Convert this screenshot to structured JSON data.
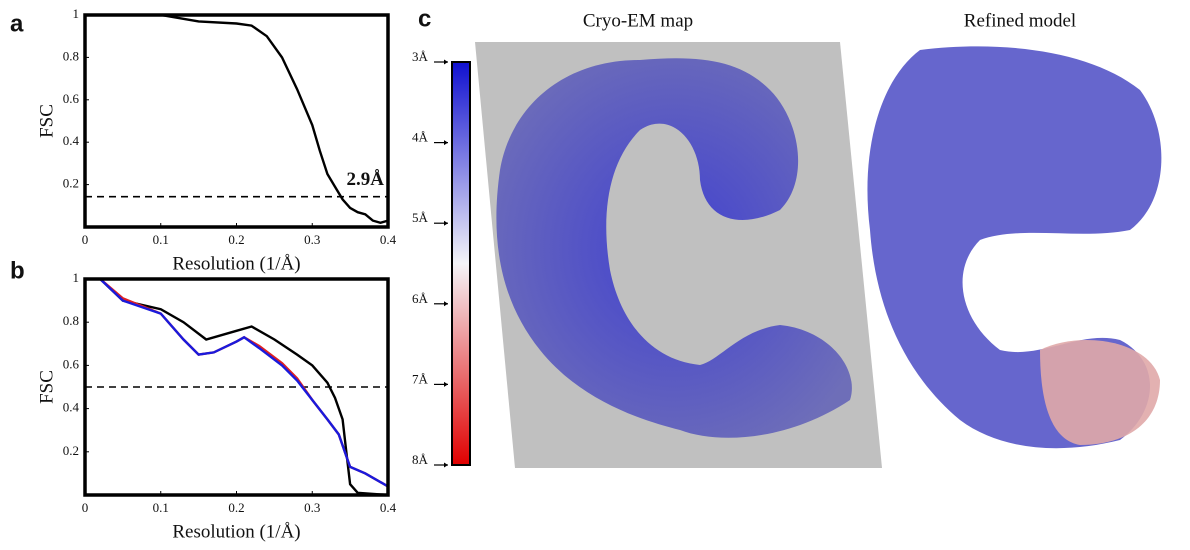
{
  "chart_data": [
    {
      "type": "line",
      "panel": "a",
      "xlabel": "Resolution (1/Å)",
      "ylabel": "FSC",
      "xlim": [
        0,
        0.4
      ],
      "ylim": [
        0,
        1
      ],
      "xticks": [
        0,
        0.1,
        0.2,
        0.3,
        0.4
      ],
      "yticks": [
        0.2,
        0.4,
        0.6,
        0.8,
        1
      ],
      "threshold": 0.143,
      "annotation": "2.9Å",
      "series": [
        {
          "color": "#000000",
          "x": [
            0.02,
            0.1,
            0.15,
            0.2,
            0.22,
            0.24,
            0.26,
            0.28,
            0.3,
            0.31,
            0.32,
            0.33,
            0.34,
            0.35,
            0.36,
            0.37,
            0.38,
            0.39,
            0.4
          ],
          "values": [
            1.0,
            1.0,
            0.97,
            0.96,
            0.95,
            0.9,
            0.8,
            0.65,
            0.48,
            0.36,
            0.25,
            0.19,
            0.13,
            0.09,
            0.07,
            0.06,
            0.03,
            0.02,
            0.03
          ]
        }
      ]
    },
    {
      "type": "line",
      "panel": "b",
      "xlabel": "Resolution (1/Å)",
      "ylabel": "FSC",
      "xlim": [
        0,
        0.4
      ],
      "ylim": [
        0,
        1
      ],
      "xticks": [
        0,
        0.1,
        0.2,
        0.3,
        0.4
      ],
      "yticks": [
        0.2,
        0.4,
        0.6,
        0.8,
        1
      ],
      "threshold": 0.5,
      "series": [
        {
          "color": "#000000",
          "x": [
            0.02,
            0.05,
            0.1,
            0.13,
            0.16,
            0.2,
            0.22,
            0.25,
            0.28,
            0.3,
            0.32,
            0.33,
            0.34,
            0.345,
            0.35,
            0.36,
            0.4
          ],
          "values": [
            1.0,
            0.9,
            0.86,
            0.8,
            0.72,
            0.76,
            0.78,
            0.72,
            0.65,
            0.6,
            0.52,
            0.45,
            0.35,
            0.2,
            0.05,
            0.01,
            0.0
          ]
        },
        {
          "color": "#e02020",
          "x": [
            0.02,
            0.05,
            0.1,
            0.13,
            0.15,
            0.17,
            0.2,
            0.21,
            0.23,
            0.26,
            0.28,
            0.3,
            0.32,
            0.335,
            0.345,
            0.35,
            0.37,
            0.4
          ],
          "values": [
            1.0,
            0.91,
            0.84,
            0.72,
            0.65,
            0.66,
            0.71,
            0.73,
            0.69,
            0.61,
            0.54,
            0.44,
            0.35,
            0.28,
            0.18,
            0.13,
            0.1,
            0.04
          ]
        },
        {
          "color": "#1a1adc",
          "x": [
            0.02,
            0.05,
            0.1,
            0.13,
            0.15,
            0.17,
            0.2,
            0.21,
            0.23,
            0.26,
            0.28,
            0.3,
            0.32,
            0.335,
            0.345,
            0.35,
            0.37,
            0.4
          ],
          "values": [
            1.0,
            0.9,
            0.84,
            0.72,
            0.65,
            0.66,
            0.71,
            0.73,
            0.68,
            0.6,
            0.53,
            0.44,
            0.35,
            0.28,
            0.18,
            0.13,
            0.1,
            0.04
          ]
        }
      ]
    }
  ],
  "panel_c": {
    "label": "c",
    "map_title": "Cryo-EM map",
    "model_title": "Refined model",
    "colorbar_labels": [
      "3Å",
      "4Å",
      "5Å",
      "6Å",
      "7Å",
      "8Å"
    ]
  }
}
